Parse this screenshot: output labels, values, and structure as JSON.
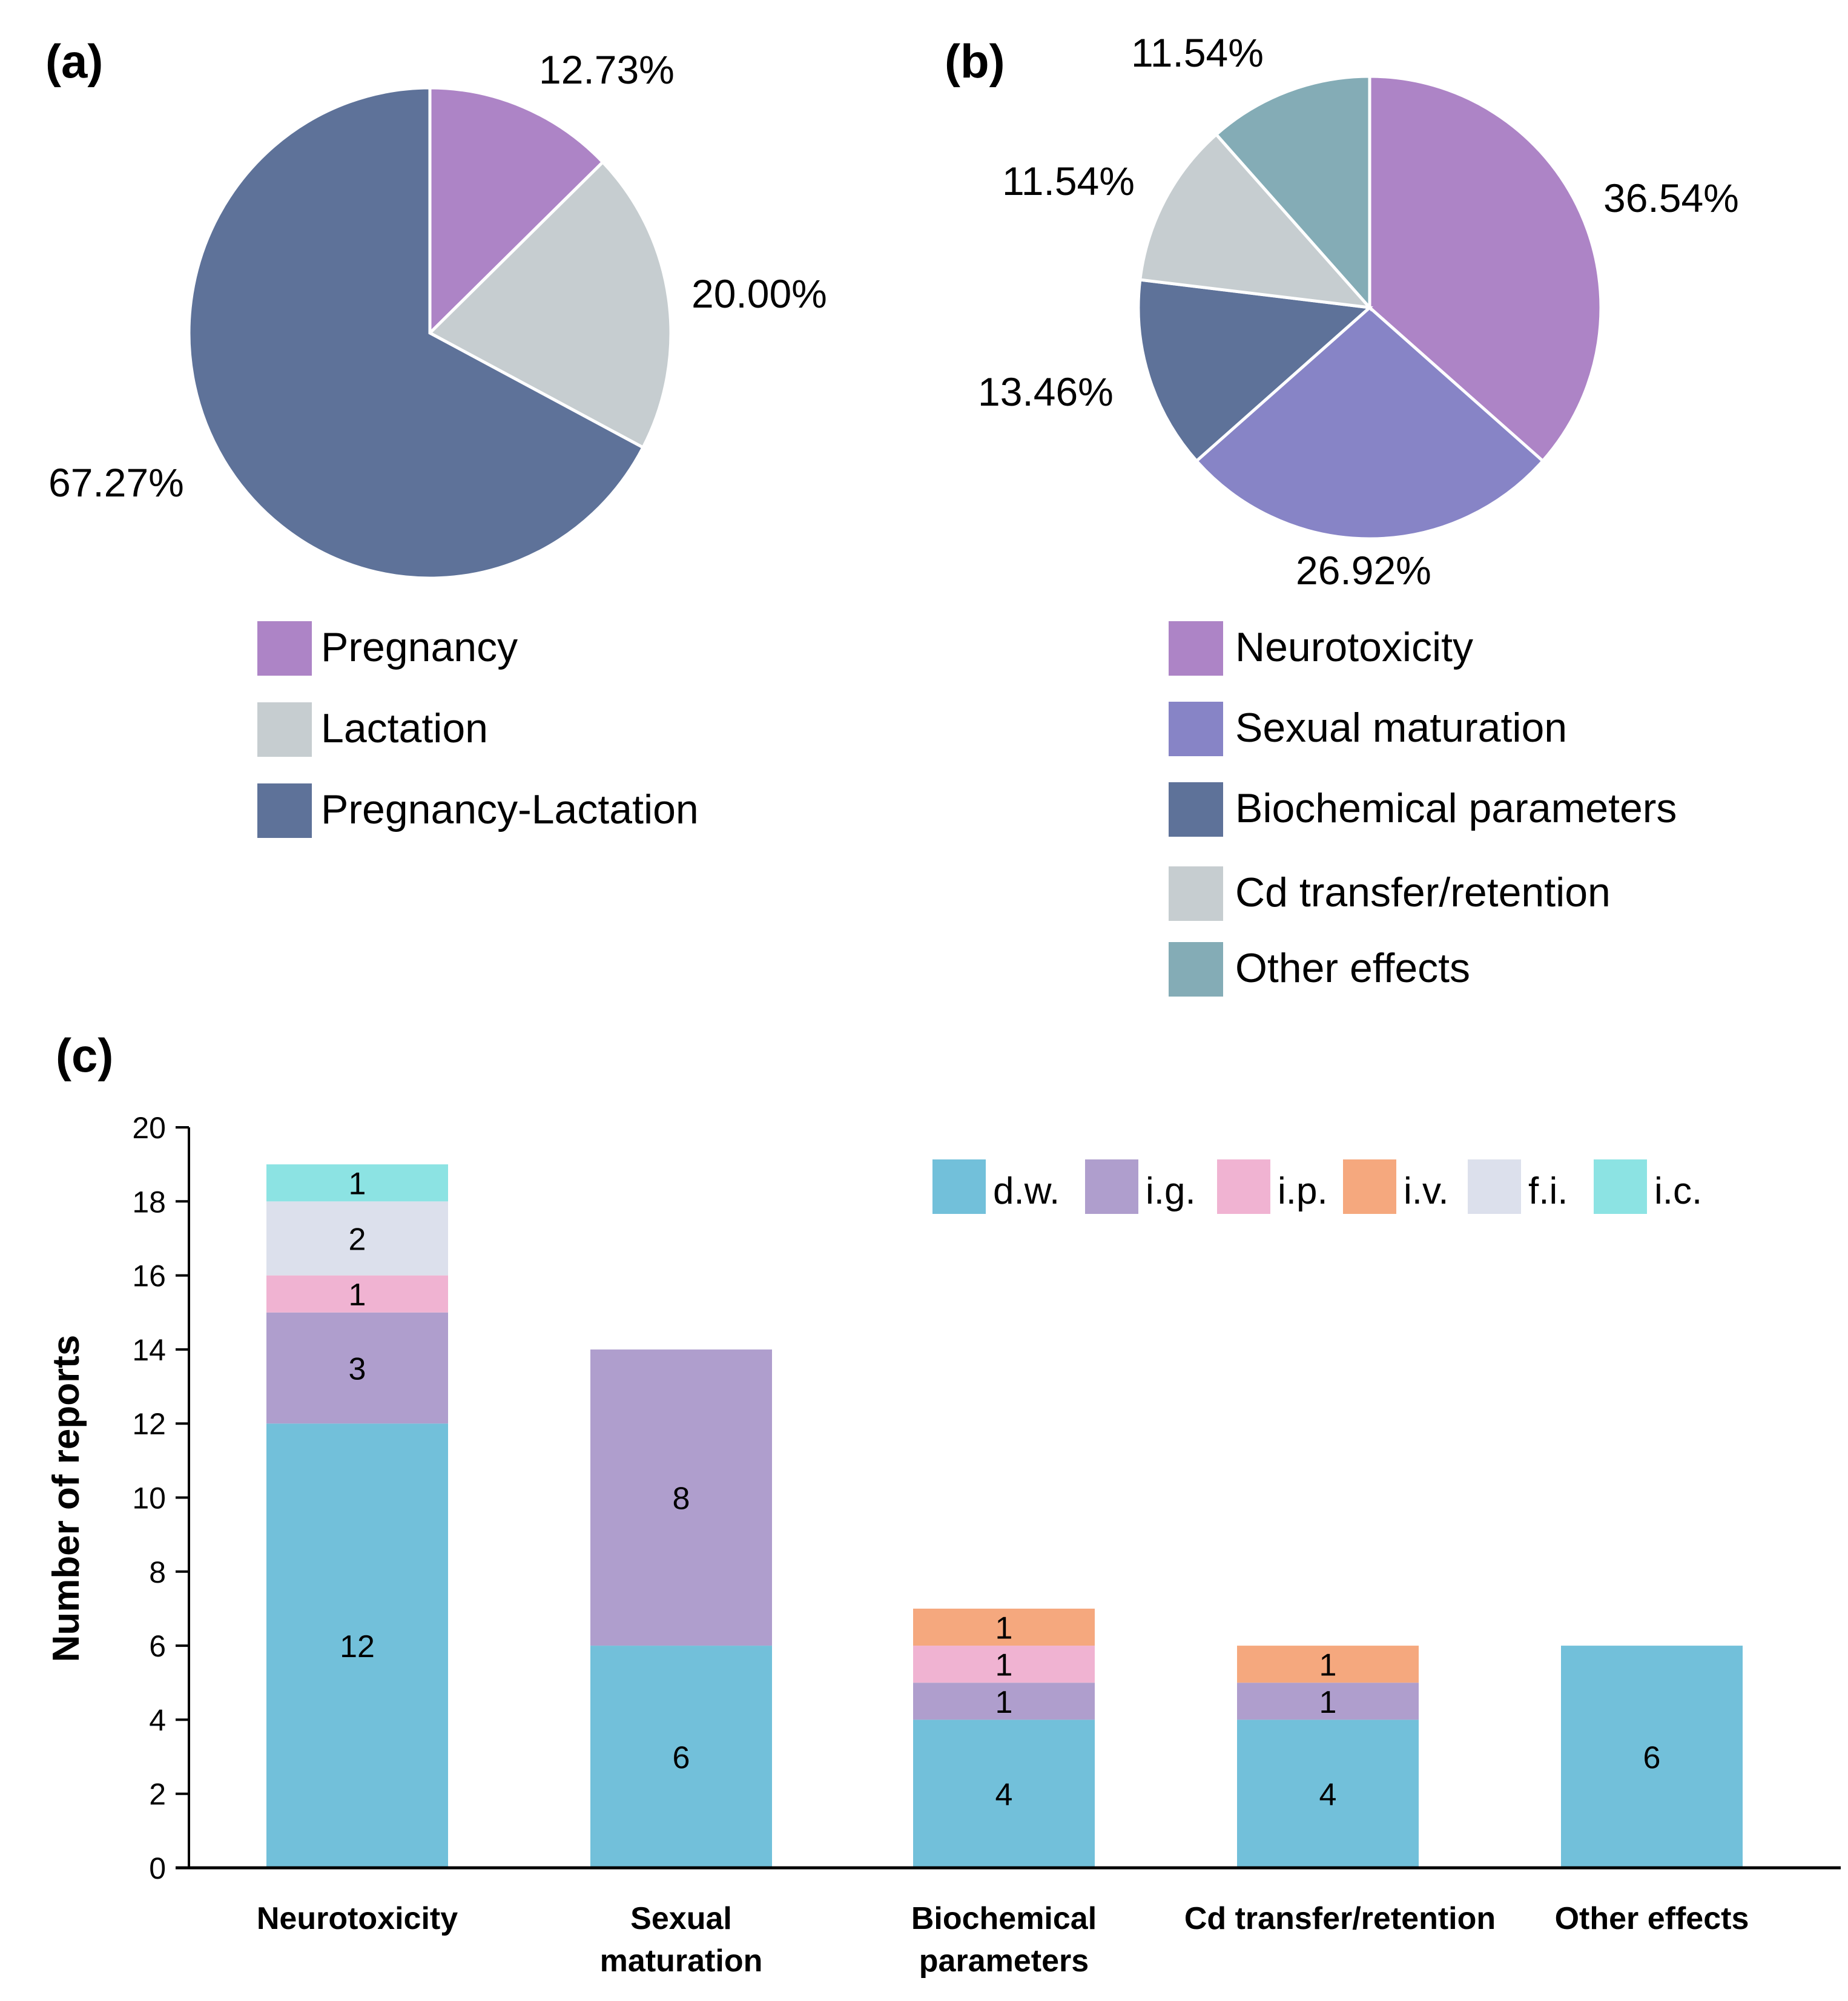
{
  "panels": {
    "a_label": "(a)",
    "b_label": "(b)",
    "c_label": "(c)"
  },
  "chart_data": [
    {
      "id": "a",
      "type": "pie",
      "title": "",
      "slices": [
        {
          "label": "Pregnancy",
          "value": 12.73,
          "display": "12.73%",
          "color": "#AD84C6"
        },
        {
          "label": "Lactation",
          "value": 20.0,
          "display": "20.00%",
          "color": "#C6CDD0"
        },
        {
          "label": "Pregnancy-Lactation",
          "value": 67.27,
          "display": "67.27%",
          "color": "#5E7299"
        }
      ],
      "start": "12 o'clock",
      "direction": "clockwise",
      "legend": "bottom"
    },
    {
      "id": "b",
      "type": "pie",
      "title": "",
      "slices": [
        {
          "label": "Neurotoxicity",
          "value": 36.54,
          "display": "36.54%",
          "color": "#AD84C6"
        },
        {
          "label": "Sexual maturation",
          "value": 26.92,
          "display": "26.92%",
          "color": "#8784C6"
        },
        {
          "label": "Biochemical parameters",
          "value": 13.46,
          "display": "13.46%",
          "color": "#5E7299"
        },
        {
          "label": "Cd transfer/retention",
          "value": 11.54,
          "display": "11.54%",
          "color": "#C6CDD0"
        },
        {
          "label": "Other effects",
          "value": 11.54,
          "display": "11.54%",
          "color": "#84ACB6"
        }
      ],
      "start": "12 o'clock",
      "direction": "clockwise",
      "legend": "bottom"
    },
    {
      "id": "c",
      "type": "bar",
      "stacked": true,
      "title": "",
      "xlabel": "",
      "ylabel": "Number of reports",
      "ylim": [
        0,
        20
      ],
      "yticks": [
        0,
        2,
        4,
        6,
        8,
        10,
        12,
        14,
        16,
        18,
        20
      ],
      "grid": false,
      "legend": "top-right",
      "categories": [
        "Neurotoxicity",
        "Sexual maturation",
        "Biochemical parameters",
        "Cd transfer/retention",
        "Other effects"
      ],
      "category_lines": [
        [
          "Neurotoxicity"
        ],
        [
          "Sexual",
          "maturation"
        ],
        [
          "Biochemical",
          "parameters"
        ],
        [
          "Cd transfer/retention"
        ],
        [
          "Other effects"
        ]
      ],
      "series": [
        {
          "name": "d.w.",
          "color": "#72C0DA",
          "values": [
            12,
            6,
            4,
            4,
            6
          ]
        },
        {
          "name": "i.g.",
          "color": "#AF9ECD",
          "values": [
            3,
            8,
            1,
            1,
            0
          ]
        },
        {
          "name": "i.p.",
          "color": "#F0B3D2",
          "values": [
            1,
            0,
            1,
            0,
            0
          ]
        },
        {
          "name": "i.v.",
          "color": "#F5A87E",
          "values": [
            0,
            0,
            1,
            1,
            0
          ]
        },
        {
          "name": "f.i.",
          "color": "#DCE0EC",
          "values": [
            2,
            0,
            0,
            0,
            0
          ]
        },
        {
          "name": "i.c.",
          "color": "#8CE3E3",
          "values": [
            1,
            0,
            0,
            0,
            0
          ]
        }
      ]
    }
  ]
}
